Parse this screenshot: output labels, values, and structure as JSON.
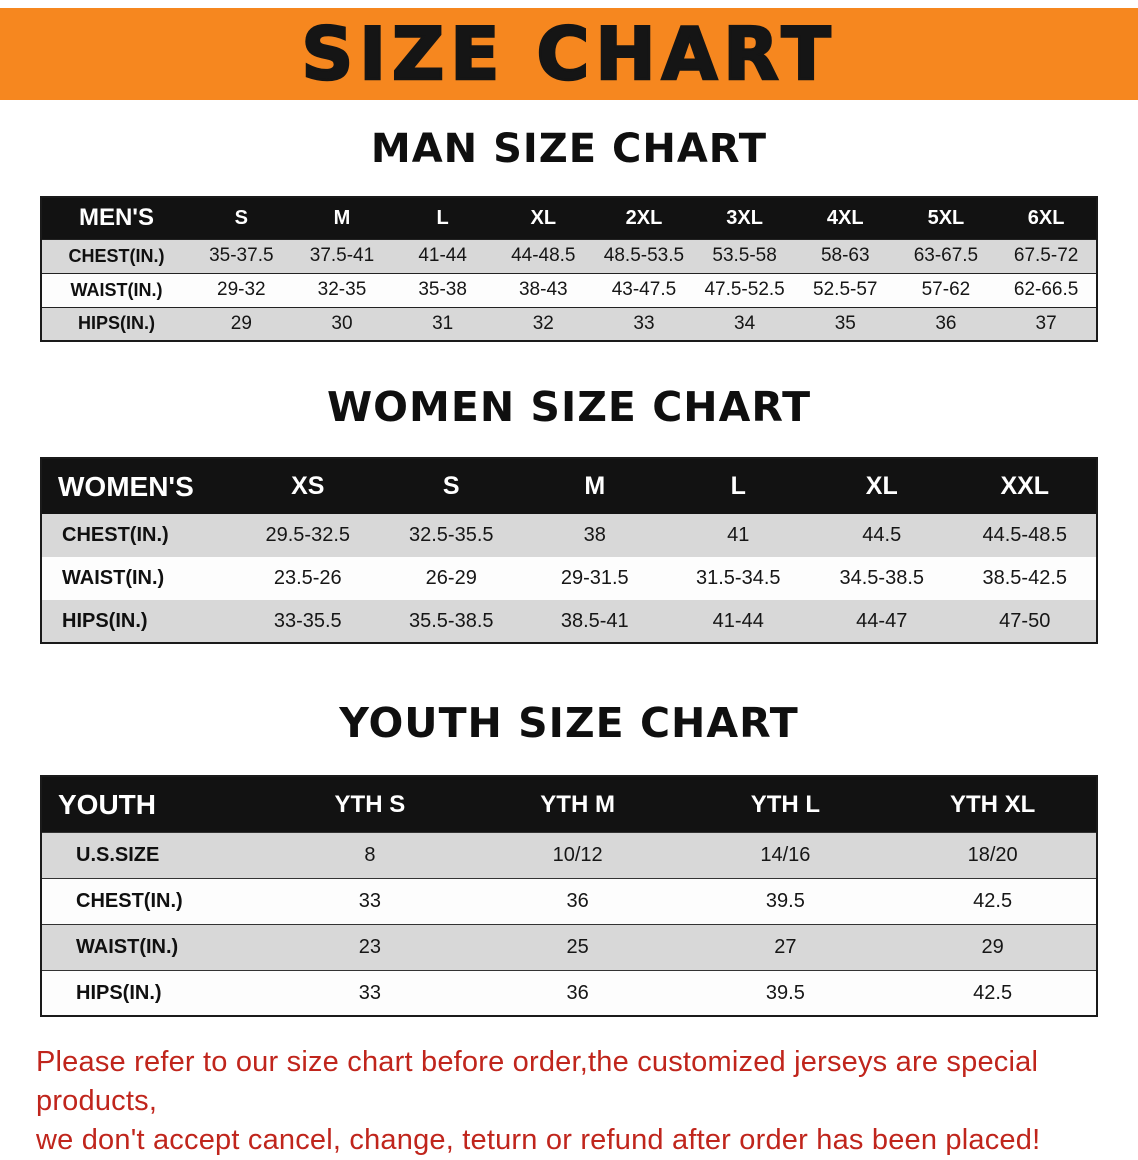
{
  "banner": {
    "title": "SIZE CHART",
    "bg_color": "#f6871f",
    "text_color": "#151515"
  },
  "sections": {
    "men": {
      "heading": "MAN SIZE CHART",
      "table": {
        "header": [
          "MEN'S",
          "S",
          "M",
          "L",
          "XL",
          "2XL",
          "3XL",
          "4XL",
          "5XL",
          "6XL"
        ],
        "rows": [
          [
            "CHEST(IN.)",
            "35-37.5",
            "37.5-41",
            "41-44",
            "44-48.5",
            "48.5-53.5",
            "53.5-58",
            "58-63",
            "63-67.5",
            "67.5-72"
          ],
          [
            "WAIST(IN.)",
            "29-32",
            "32-35",
            "35-38",
            "38-43",
            "43-47.5",
            "47.5-52.5",
            "52.5-57",
            "57-62",
            "62-66.5"
          ],
          [
            "HIPS(IN.)",
            "29",
            "30",
            "31",
            "32",
            "33",
            "34",
            "35",
            "36",
            "37"
          ]
        ]
      }
    },
    "women": {
      "heading": "WOMEN SIZE CHART",
      "table": {
        "header": [
          "WOMEN'S",
          "XS",
          "S",
          "M",
          "L",
          "XL",
          "XXL"
        ],
        "rows": [
          [
            "CHEST(IN.)",
            "29.5-32.5",
            "32.5-35.5",
            "38",
            "41",
            "44.5",
            "44.5-48.5"
          ],
          [
            "WAIST(IN.)",
            "23.5-26",
            "26-29",
            "29-31.5",
            "31.5-34.5",
            "34.5-38.5",
            "38.5-42.5"
          ],
          [
            "HIPS(IN.)",
            "33-35.5",
            "35.5-38.5",
            "38.5-41",
            "41-44",
            "44-47",
            "47-50"
          ]
        ]
      }
    },
    "youth": {
      "heading": "YOUTH SIZE CHART",
      "table": {
        "header": [
          "YOUTH",
          "YTH S",
          "YTH M",
          "YTH L",
          "YTH XL"
        ],
        "rows": [
          [
            "U.S.SIZE",
            "8",
            "10/12",
            "14/16",
            "18/20"
          ],
          [
            "CHEST(IN.)",
            "33",
            "36",
            "39.5",
            "42.5"
          ],
          [
            "WAIST(IN.)",
            "23",
            "25",
            "27",
            "29"
          ],
          [
            "HIPS(IN.)",
            "33",
            "36",
            "39.5",
            "42.5"
          ]
        ]
      }
    }
  },
  "disclaimer": {
    "line1": "Please refer to our size chart before order,the customized jerseys are special products,",
    "line2": "we don't accept cancel, change, teturn or refund after order has been placed!",
    "color": "#c0251c"
  },
  "chart_data": {
    "type": "table",
    "tables": [
      {
        "title": "MAN SIZE CHART",
        "columns": [
          "MEN'S",
          "S",
          "M",
          "L",
          "XL",
          "2XL",
          "3XL",
          "4XL",
          "5XL",
          "6XL"
        ],
        "rows": [
          [
            "CHEST(IN.)",
            "35-37.5",
            "37.5-41",
            "41-44",
            "44-48.5",
            "48.5-53.5",
            "53.5-58",
            "58-63",
            "63-67.5",
            "67.5-72"
          ],
          [
            "WAIST(IN.)",
            "29-32",
            "32-35",
            "35-38",
            "38-43",
            "43-47.5",
            "47.5-52.5",
            "52.5-57",
            "57-62",
            "62-66.5"
          ],
          [
            "HIPS(IN.)",
            "29",
            "30",
            "31",
            "32",
            "33",
            "34",
            "35",
            "36",
            "37"
          ]
        ]
      },
      {
        "title": "WOMEN SIZE CHART",
        "columns": [
          "WOMEN'S",
          "XS",
          "S",
          "M",
          "L",
          "XL",
          "XXL"
        ],
        "rows": [
          [
            "CHEST(IN.)",
            "29.5-32.5",
            "32.5-35.5",
            "38",
            "41",
            "44.5",
            "44.5-48.5"
          ],
          [
            "WAIST(IN.)",
            "23.5-26",
            "26-29",
            "29-31.5",
            "31.5-34.5",
            "34.5-38.5",
            "38.5-42.5"
          ],
          [
            "HIPS(IN.)",
            "33-35.5",
            "35.5-38.5",
            "38.5-41",
            "41-44",
            "44-47",
            "47-50"
          ]
        ]
      },
      {
        "title": "YOUTH SIZE CHART",
        "columns": [
          "YOUTH",
          "YTH S",
          "YTH M",
          "YTH L",
          "YTH XL"
        ],
        "rows": [
          [
            "U.S.SIZE",
            "8",
            "10/12",
            "14/16",
            "18/20"
          ],
          [
            "CHEST(IN.)",
            "33",
            "36",
            "39.5",
            "42.5"
          ],
          [
            "WAIST(IN.)",
            "23",
            "25",
            "27",
            "29"
          ],
          [
            "HIPS(IN.)",
            "33",
            "36",
            "39.5",
            "42.5"
          ]
        ]
      }
    ]
  }
}
